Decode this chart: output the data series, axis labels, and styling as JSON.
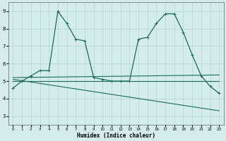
{
  "xlabel": "Humidex (Indice chaleur)",
  "xlim": [
    -0.5,
    23.5
  ],
  "ylim": [
    2.5,
    9.5
  ],
  "yticks": [
    3,
    4,
    5,
    6,
    7,
    8,
    9
  ],
  "xticks": [
    0,
    1,
    2,
    3,
    4,
    5,
    6,
    7,
    8,
    9,
    10,
    11,
    12,
    13,
    14,
    15,
    16,
    17,
    18,
    19,
    20,
    21,
    22,
    23
  ],
  "bg_color": "#d4ecec",
  "grid_color": "#b8d8d8",
  "line_color": "#1a6b5a",
  "series1_x": [
    0,
    1,
    2,
    3,
    4,
    5,
    6,
    7,
    8,
    9,
    10,
    11,
    12,
    13,
    14,
    15,
    16,
    17,
    18,
    19,
    20,
    21,
    22,
    23
  ],
  "series1_y": [
    4.6,
    5.0,
    5.3,
    5.6,
    5.6,
    9.0,
    8.3,
    7.4,
    7.3,
    5.2,
    5.1,
    5.0,
    5.0,
    5.0,
    7.4,
    7.5,
    8.3,
    8.85,
    8.85,
    7.8,
    6.5,
    5.3,
    4.7,
    4.3
  ],
  "series2_x": [
    0,
    23
  ],
  "series2_y": [
    5.0,
    5.0
  ],
  "series3_x": [
    0,
    23
  ],
  "series3_y": [
    5.1,
    3.3
  ],
  "series4_x": [
    0,
    23
  ],
  "series4_y": [
    5.2,
    5.35
  ]
}
